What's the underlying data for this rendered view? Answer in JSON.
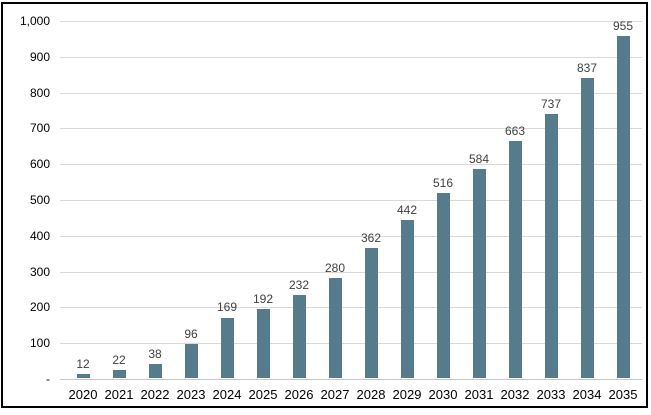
{
  "chart_data": {
    "type": "bar",
    "title": "",
    "xlabel": "",
    "ylabel": "",
    "categories": [
      "2020",
      "2021",
      "2022",
      "2023",
      "2024",
      "2025",
      "2026",
      "2027",
      "2028",
      "2029",
      "2030",
      "2031",
      "2032",
      "2033",
      "2034",
      "2035"
    ],
    "values": [
      12,
      22,
      38,
      96,
      169,
      192,
      232,
      280,
      362,
      442,
      516,
      584,
      663,
      737,
      837,
      955
    ],
    "ylim": [
      0,
      1000
    ],
    "ytick_interval": 100,
    "ytick_labels": [
      "-",
      "100",
      "200",
      "300",
      "400",
      "500",
      "600",
      "700",
      "800",
      "900",
      "1,000"
    ],
    "grid": true,
    "legend_position": "none",
    "colors": {
      "bar": "#557b8d",
      "gridline": "#d9d9d9",
      "axis_line": "#c6c6c6",
      "axis_text": "#000000",
      "value_text": "#404040",
      "frame_border": "#000000",
      "background": "#ffffff"
    }
  }
}
